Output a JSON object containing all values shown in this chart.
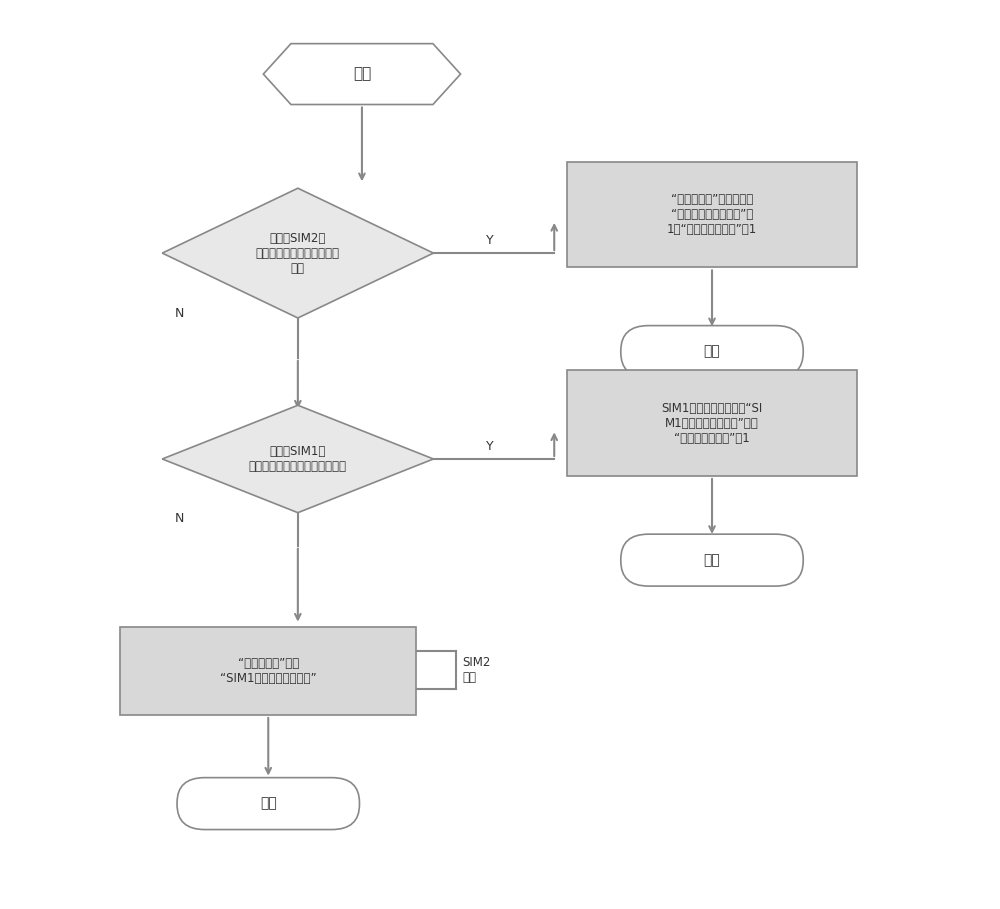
{
  "title": "",
  "bg_color": "#ffffff",
  "start_text": "开始",
  "end_text": "结束",
  "diamond1_text": "是否为SIM2检\n测锁网状态且为开机后首次\n判定",
  "box1_text": "“锁网状态值”为非真，且\n“锁网判定剩余次数值”为\n1，“锁网判定次数值”加1",
  "diamond2_text": "是否为SIM1检\n测锁网状态且为开机后首次判定",
  "box2_text": "SIM1的锁网状态保存在“SI\nM1的锁网状态标志位”中，\n“锁网判定次数值”加1",
  "box3_text": "“锁网状态值”等于\n“SIM1的锁网状态标志位”",
  "sim2_label": "SIM2\n判定",
  "y_label": "Y",
  "n_label": "N",
  "arrow_color": "#888888",
  "shape_edge": "#888888",
  "diamond_fill": "#e8e8e8",
  "box_fill": "#d8d8d8",
  "end_fill": "#ffffff",
  "start_fill": "#ffffff"
}
